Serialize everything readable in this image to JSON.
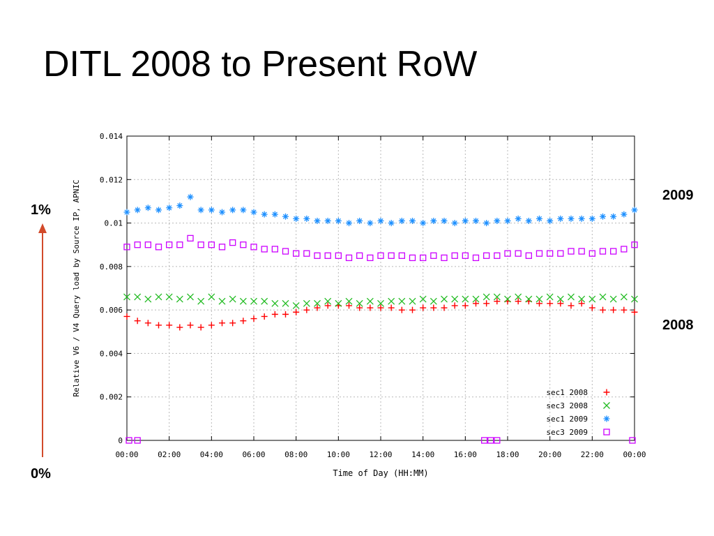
{
  "slide": {
    "title": "DITL 2008 to Present RoW",
    "label_top": "1%",
    "label_bottom": "0%",
    "label_2009": "2009",
    "label_2008": "2008"
  },
  "colors": {
    "arrow": "#d24a2a",
    "sec1_2008": "#ff0000",
    "sec3_2008": "#22bb22",
    "sec1_2009": "#1e90ff",
    "sec3_2009": "#cc00ff",
    "grid": "#b8b8b8"
  },
  "chart_data": {
    "type": "scatter",
    "title": "",
    "xlabel": "Time of Day (HH:MM)",
    "ylabel": "Relative V6 / V4 Query load by Source IP, APNIC",
    "xlim": [
      0,
      24
    ],
    "ylim": [
      0,
      0.014
    ],
    "grid": true,
    "legend_position": "bottom-right",
    "x_ticks": [
      "00:00",
      "02:00",
      "04:00",
      "06:00",
      "08:00",
      "10:00",
      "12:00",
      "14:00",
      "16:00",
      "18:00",
      "20:00",
      "22:00",
      "00:00"
    ],
    "y_ticks": [
      "0",
      "0.002",
      "0.004",
      "0.006",
      "0.008",
      "0.01",
      "0.012",
      "0.014"
    ],
    "series": [
      {
        "name": "sec1 2008",
        "marker": "plus",
        "x": [
          0,
          0.5,
          1,
          1.5,
          2,
          2.5,
          3,
          3.5,
          4,
          4.5,
          5,
          5.5,
          6,
          6.5,
          7,
          7.5,
          8,
          8.5,
          9,
          9.5,
          10,
          10.5,
          11,
          11.5,
          12,
          12.5,
          13,
          13.5,
          14,
          14.5,
          15,
          15.5,
          16,
          16.5,
          17,
          17.5,
          18,
          18.5,
          19,
          19.5,
          20,
          20.5,
          21,
          21.5,
          22,
          22.5,
          23,
          23.5,
          24
        ],
        "values": [
          0.0057,
          0.0055,
          0.0054,
          0.0053,
          0.0053,
          0.0052,
          0.0053,
          0.0052,
          0.0053,
          0.0054,
          0.0054,
          0.0055,
          0.0056,
          0.0057,
          0.0058,
          0.0058,
          0.0059,
          0.006,
          0.0061,
          0.0062,
          0.0062,
          0.0062,
          0.0061,
          0.0061,
          0.0061,
          0.0061,
          0.006,
          0.006,
          0.0061,
          0.0061,
          0.0061,
          0.0062,
          0.0062,
          0.0063,
          0.0063,
          0.0064,
          0.0064,
          0.0064,
          0.0064,
          0.0063,
          0.0063,
          0.0063,
          0.0062,
          0.0063,
          0.0061,
          0.006,
          0.006,
          0.006,
          0.0059
        ]
      },
      {
        "name": "sec3 2008",
        "marker": "cross",
        "x": [
          0,
          0.5,
          1,
          1.5,
          2,
          2.5,
          3,
          3.5,
          4,
          4.5,
          5,
          5.5,
          6,
          6.5,
          7,
          7.5,
          8,
          8.5,
          9,
          9.5,
          10,
          10.5,
          11,
          11.5,
          12,
          12.5,
          13,
          13.5,
          14,
          14.5,
          15,
          15.5,
          16,
          16.5,
          17,
          17.5,
          18,
          18.5,
          19,
          19.5,
          20,
          20.5,
          21,
          21.5,
          22,
          22.5,
          23,
          23.5,
          24
        ],
        "values": [
          0.0066,
          0.0066,
          0.0065,
          0.0066,
          0.0066,
          0.0065,
          0.0066,
          0.0064,
          0.0066,
          0.0064,
          0.0065,
          0.0064,
          0.0064,
          0.0064,
          0.0063,
          0.0063,
          0.0062,
          0.0063,
          0.0063,
          0.0064,
          0.0063,
          0.0064,
          0.0063,
          0.0064,
          0.0063,
          0.0064,
          0.0064,
          0.0064,
          0.0065,
          0.0064,
          0.0065,
          0.0065,
          0.0065,
          0.0065,
          0.0066,
          0.0066,
          0.0065,
          0.0066,
          0.0065,
          0.0065,
          0.0066,
          0.0065,
          0.0066,
          0.0065,
          0.0065,
          0.0066,
          0.0065,
          0.0066,
          0.0065
        ]
      },
      {
        "name": "sec1 2009",
        "marker": "star",
        "x": [
          0,
          0.5,
          1,
          1.5,
          2,
          2.5,
          3,
          3.5,
          4,
          4.5,
          5,
          5.5,
          6,
          6.5,
          7,
          7.5,
          8,
          8.5,
          9,
          9.5,
          10,
          10.5,
          11,
          11.5,
          12,
          12.5,
          13,
          13.5,
          14,
          14.5,
          15,
          15.5,
          16,
          16.5,
          17,
          17.5,
          18,
          18.5,
          19,
          19.5,
          20,
          20.5,
          21,
          21.5,
          22,
          22.5,
          23,
          23.5,
          24
        ],
        "values": [
          0.0105,
          0.0106,
          0.0107,
          0.0106,
          0.0107,
          0.0108,
          0.0112,
          0.0106,
          0.0106,
          0.0105,
          0.0106,
          0.0106,
          0.0105,
          0.0104,
          0.0104,
          0.0103,
          0.0102,
          0.0102,
          0.0101,
          0.0101,
          0.0101,
          0.01,
          0.0101,
          0.01,
          0.0101,
          0.01,
          0.0101,
          0.0101,
          0.01,
          0.0101,
          0.0101,
          0.01,
          0.0101,
          0.0101,
          0.01,
          0.0101,
          0.0101,
          0.0102,
          0.0101,
          0.0102,
          0.0101,
          0.0102,
          0.0102,
          0.0102,
          0.0102,
          0.0103,
          0.0103,
          0.0104,
          0.0106
        ]
      },
      {
        "name": "sec3 2009",
        "marker": "square",
        "x": [
          0,
          0.5,
          1,
          1.5,
          2,
          2.5,
          3,
          3.5,
          4,
          4.5,
          5,
          5.5,
          6,
          6.5,
          7,
          7.5,
          8,
          8.5,
          9,
          9.5,
          10,
          10.5,
          11,
          11.5,
          12,
          12.5,
          13,
          13.5,
          14,
          14.5,
          15,
          15.5,
          16,
          16.5,
          17,
          17.5,
          18,
          18.5,
          19,
          19.5,
          20,
          20.5,
          21,
          21.5,
          22,
          22.5,
          23,
          23.5,
          24,
          0.1,
          0.5,
          16.9,
          17.2,
          17.5,
          23.9
        ],
        "values": [
          0.0089,
          0.009,
          0.009,
          0.0089,
          0.009,
          0.009,
          0.0093,
          0.009,
          0.009,
          0.0089,
          0.0091,
          0.009,
          0.0089,
          0.0088,
          0.0088,
          0.0087,
          0.0086,
          0.0086,
          0.0085,
          0.0085,
          0.0085,
          0.0084,
          0.0085,
          0.0084,
          0.0085,
          0.0085,
          0.0085,
          0.0084,
          0.0084,
          0.0085,
          0.0084,
          0.0085,
          0.0085,
          0.0084,
          0.0085,
          0.0085,
          0.0086,
          0.0086,
          0.0085,
          0.0086,
          0.0086,
          0.0086,
          0.0087,
          0.0087,
          0.0086,
          0.0087,
          0.0087,
          0.0088,
          0.009,
          0,
          0,
          0,
          0,
          0,
          0
        ]
      }
    ]
  }
}
